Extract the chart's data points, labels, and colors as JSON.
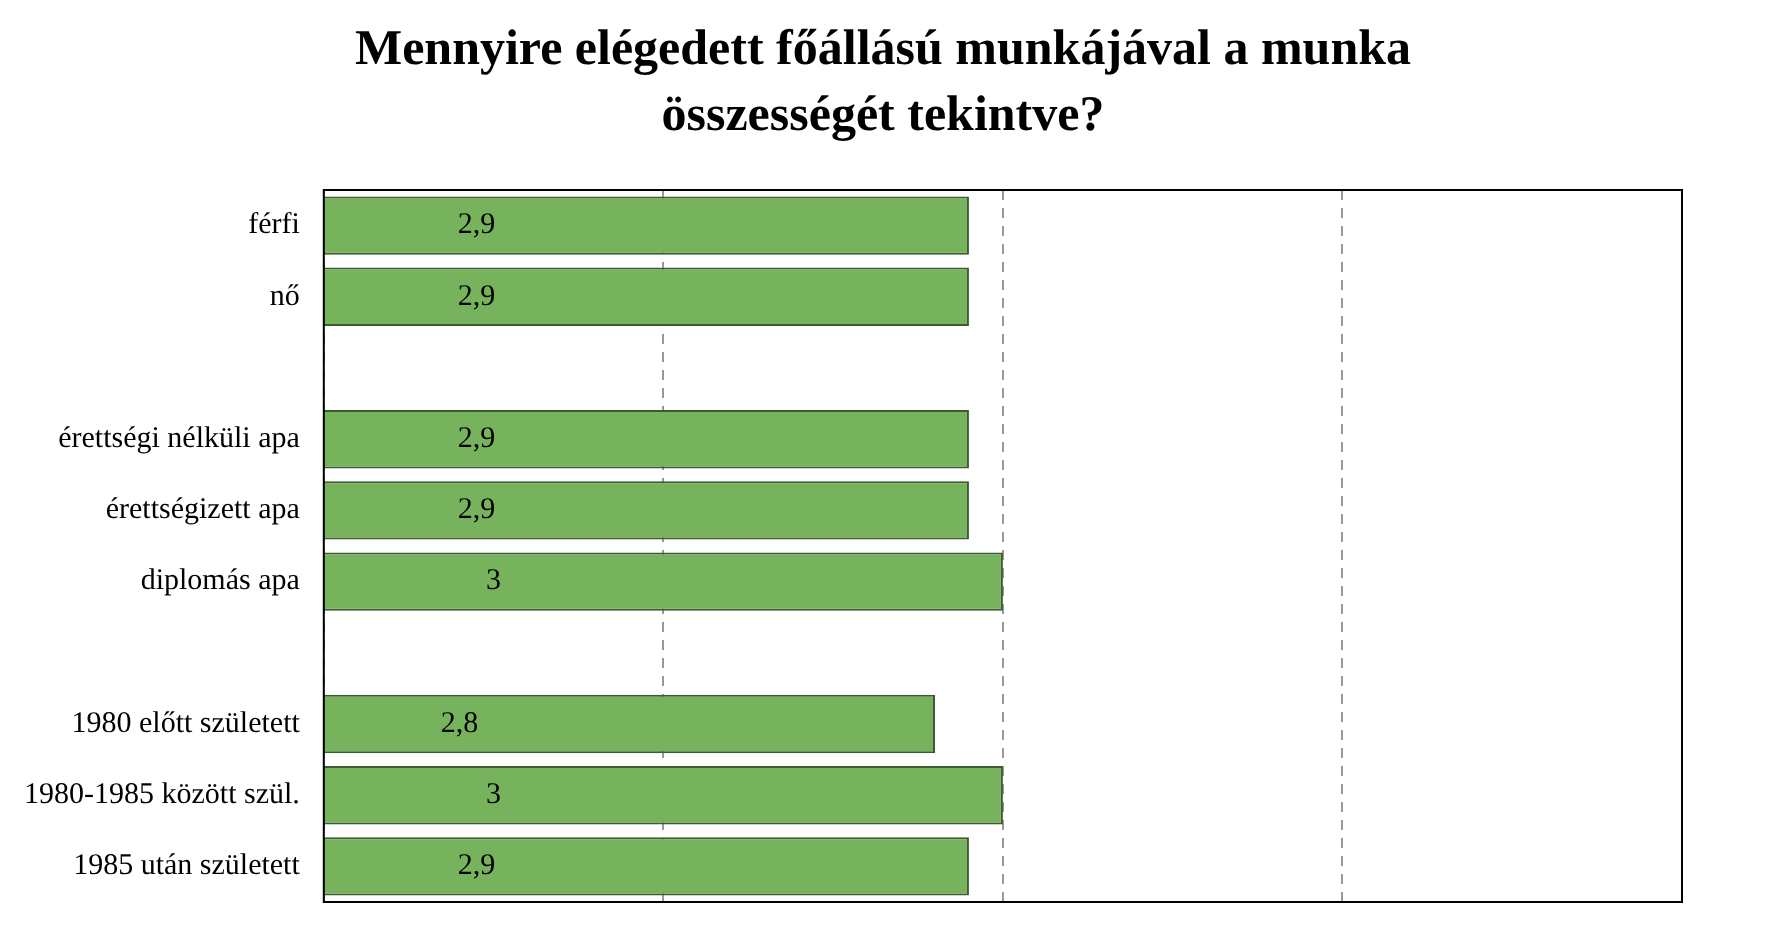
{
  "chart_data": {
    "type": "bar",
    "orientation": "horizontal",
    "title": "Mennyire elégedett főállású munkájával a munka összességét tekintve?",
    "categories": [
      "férfi",
      "nő",
      null,
      "érettségi nélküli apa",
      "érettségizett apa",
      "diplomás apa",
      null,
      "1980 előtt született",
      "1980-1985 között szül.",
      "1985 után született"
    ],
    "values": [
      2.9,
      2.9,
      null,
      2.9,
      2.9,
      3,
      null,
      2.8,
      3,
      2.9
    ],
    "value_labels": [
      "2,9",
      "2,9",
      null,
      "2,9",
      "2,9",
      "3",
      null,
      "2,8",
      "3",
      "2,9"
    ],
    "color": "#77b35c",
    "xlim": [
      1,
      5
    ],
    "xticks": [
      1,
      2,
      3,
      4,
      5
    ],
    "grid": "x",
    "tick_labels": "y",
    "legend": false
  }
}
